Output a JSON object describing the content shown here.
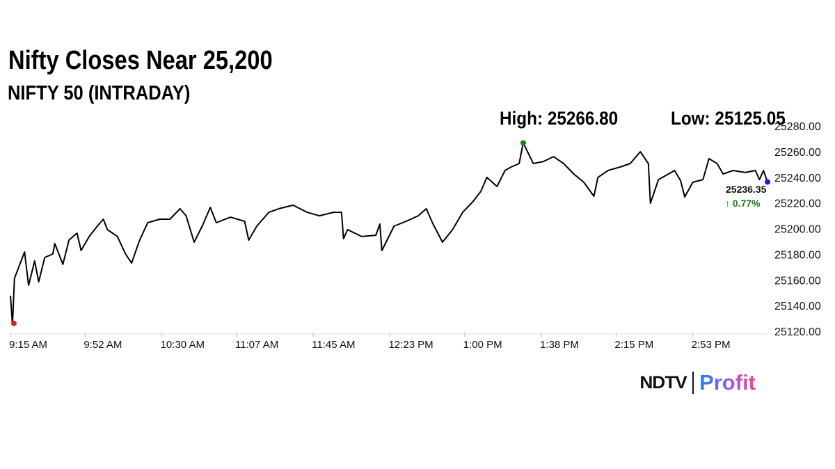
{
  "header": {
    "title": "Nifty Closes Near 25,200",
    "subtitle": "NIFTY 50 (INTRADAY)",
    "high_label": "High: 25266.80",
    "low_label": "Low: 25125.05"
  },
  "logo": {
    "brand": "NDTV",
    "product": "Profit"
  },
  "chart_data": {
    "type": "line",
    "title": "NIFTY 50 (INTRADAY)",
    "ylim": [
      25120,
      25280
    ],
    "y_ticks": [
      "25120.00",
      "25140.00",
      "25160.00",
      "25180.00",
      "25200.00",
      "25220.00",
      "25240.00",
      "25260.00",
      "25280.00"
    ],
    "x_range": [
      "9:15",
      "15:30"
    ],
    "x_ticks": [
      {
        "time": "9:15",
        "label": "9:15 AM"
      },
      {
        "time": "9:52",
        "label": "9:52 AM"
      },
      {
        "time": "10:30",
        "label": "10:30 AM"
      },
      {
        "time": "11:07",
        "label": "11:07 AM"
      },
      {
        "time": "11:45",
        "label": "11:45 AM"
      },
      {
        "time": "12:23",
        "label": "12:23 PM"
      },
      {
        "time": "13:00",
        "label": "1:00 PM"
      },
      {
        "time": "13:38",
        "label": "1:38 PM"
      },
      {
        "time": "14:15",
        "label": "2:15 PM"
      },
      {
        "time": "14:53",
        "label": "2:53 PM"
      }
    ],
    "grid": false,
    "line_color": "#000000",
    "high": {
      "time": "13:29",
      "value": 25266.8,
      "color": "#1a7f1a"
    },
    "low": {
      "time": "9:16",
      "value": 25125.05,
      "color": "#e02020"
    },
    "last": {
      "time": "15:30",
      "value": 25236.35,
      "label": "25236.35",
      "change": "↑ 0.77%",
      "color": "#1a1ad0",
      "change_color": "#1a7f1a"
    },
    "series": [
      {
        "points": [
          [
            "9:15",
            25147.7
          ],
          [
            "9:16",
            25125.05
          ],
          [
            "9:17",
            25161.2
          ],
          [
            "9:22",
            25181.8
          ],
          [
            "9:24",
            25155.8
          ],
          [
            "9:27",
            25174.8
          ],
          [
            "9:29",
            25158.5
          ],
          [
            "9:32",
            25177.5
          ],
          [
            "9:36",
            25180.2
          ],
          [
            "9:37",
            25188.3
          ],
          [
            "9:41",
            25172.1
          ],
          [
            "9:44",
            25191.0
          ],
          [
            "9:48",
            25196.5
          ],
          [
            "9:50",
            25182.9
          ],
          [
            "9:54",
            25193.8
          ],
          [
            "9:58",
            25201.9
          ],
          [
            "10:01",
            25207.3
          ],
          [
            "10:03",
            25199.2
          ],
          [
            "10:08",
            25193.8
          ],
          [
            "10:12",
            25180.2
          ],
          [
            "10:15",
            25173.1
          ],
          [
            "10:19",
            25191.0
          ],
          [
            "10:23",
            25204.6
          ],
          [
            "10:29",
            25207.3
          ],
          [
            "10:34",
            25207.3
          ],
          [
            "10:39",
            25215.5
          ],
          [
            "10:42",
            25210.0
          ],
          [
            "10:46",
            25189.4
          ],
          [
            "10:50",
            25201.9
          ],
          [
            "10:54",
            25216.5
          ],
          [
            "10:57",
            25204.6
          ],
          [
            "11:04",
            25208.9
          ],
          [
            "11:11",
            25205.7
          ],
          [
            "11:13",
            25191.0
          ],
          [
            "11:17",
            25201.9
          ],
          [
            "11:23",
            25212.7
          ],
          [
            "11:28",
            25215.5
          ],
          [
            "11:35",
            25218.2
          ],
          [
            "11:42",
            25212.7
          ],
          [
            "11:48",
            25210.0
          ],
          [
            "11:55",
            25212.7
          ],
          [
            "11:59",
            25212.7
          ],
          [
            "12:00",
            25192.1
          ],
          [
            "12:02",
            25199.2
          ],
          [
            "12:09",
            25193.8
          ],
          [
            "12:16",
            25194.8
          ],
          [
            "12:18",
            25203.5
          ],
          [
            "12:19",
            25182.9
          ],
          [
            "12:25",
            25201.9
          ],
          [
            "12:31",
            25205.7
          ],
          [
            "12:37",
            25210.0
          ],
          [
            "12:41",
            25215.5
          ],
          [
            "12:44",
            25204.6
          ],
          [
            "12:49",
            25189.4
          ],
          [
            "12:54",
            25199.2
          ],
          [
            "12:59",
            25212.7
          ],
          [
            "13:04",
            25220.9
          ],
          [
            "13:08",
            25229.0
          ],
          [
            "13:11",
            25239.9
          ],
          [
            "13:16",
            25232.8
          ],
          [
            "13:20",
            25245.3
          ],
          [
            "13:23",
            25248.0
          ],
          [
            "13:27",
            25250.7
          ],
          [
            "13:29",
            25266.8
          ],
          [
            "13:34",
            25250.7
          ],
          [
            "13:39",
            25252.3
          ],
          [
            "13:44",
            25256.1
          ],
          [
            "13:49",
            25250.7
          ],
          [
            "13:54",
            25242.6
          ],
          [
            "13:59",
            25236.1
          ],
          [
            "14:04",
            25225.2
          ],
          [
            "14:06",
            25239.9
          ],
          [
            "14:11",
            25245.3
          ],
          [
            "14:17",
            25248.0
          ],
          [
            "14:22",
            25250.7
          ],
          [
            "14:27",
            25259.9
          ],
          [
            "14:31",
            25250.7
          ],
          [
            "14:32",
            25219.8
          ],
          [
            "14:36",
            25238.2
          ],
          [
            "14:41",
            25242.6
          ],
          [
            "14:44",
            25245.3
          ],
          [
            "14:47",
            25237.2
          ],
          [
            "14:49",
            25224.7
          ],
          [
            "14:53",
            25236.1
          ],
          [
            "14:58",
            25238.2
          ],
          [
            "15:01",
            25254.5
          ],
          [
            "15:05",
            25250.7
          ],
          [
            "15:08",
            25242.6
          ],
          [
            "15:13",
            25245.3
          ],
          [
            "15:19",
            25243.7
          ],
          [
            "15:24",
            25245.3
          ],
          [
            "15:26",
            25238.2
          ],
          [
            "15:28",
            25245.3
          ],
          [
            "15:30",
            25236.35
          ]
        ]
      }
    ]
  }
}
